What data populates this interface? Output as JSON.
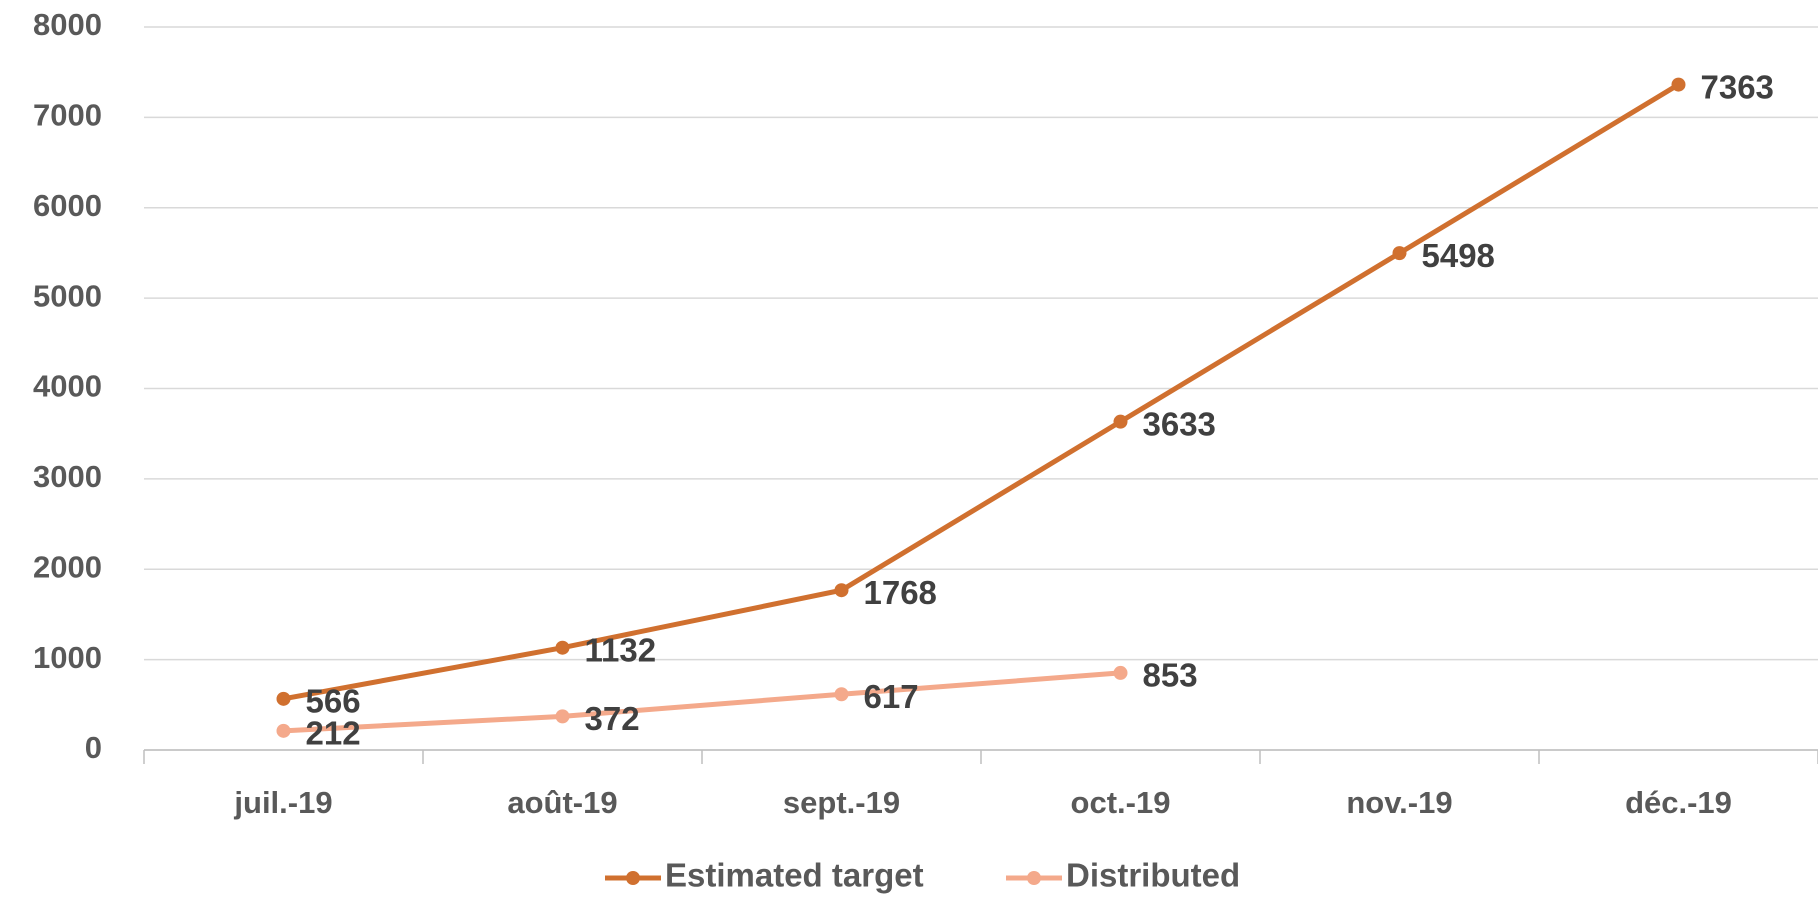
{
  "chart_data": {
    "type": "line",
    "categories": [
      "juil.-19",
      "août-19",
      "sept.-19",
      "oct.-19",
      "nov.-19",
      "déc.-19"
    ],
    "series": [
      {
        "name": "Estimated target",
        "color": "#d0702f",
        "values": [
          566,
          1132,
          1768,
          3633,
          5498,
          7363
        ]
      },
      {
        "name": "Distributed",
        "color": "#f4a98b",
        "values": [
          212,
          372,
          617,
          853,
          null,
          null
        ]
      }
    ],
    "ylim": [
      0,
      8000
    ],
    "yticks": [
      0,
      1000,
      2000,
      3000,
      4000,
      5000,
      6000,
      7000,
      8000
    ],
    "grid": true,
    "legend": "bottom"
  }
}
